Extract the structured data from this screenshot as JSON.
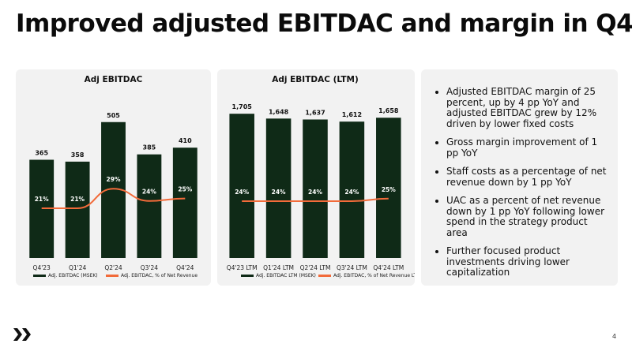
{
  "slide": {
    "title": "Improved adjusted EBITDAC and margin in Q4",
    "page_number": "4",
    "logo_icon": "chevron-logo-icon"
  },
  "colors": {
    "bar": "#0f2a17",
    "line": "#f26b3a",
    "panel_bg": "#f2f2f2"
  },
  "chart_data": [
    {
      "type": "bar",
      "title": "Adj EBITDAC",
      "categories": [
        "Q4'23",
        "Q1'24",
        "Q2'24",
        "Q3'24",
        "Q4'24"
      ],
      "series": [
        {
          "name": "Adj. EBITDAC (MSEK)",
          "type": "bar",
          "values": [
            365,
            358,
            505,
            385,
            410
          ],
          "labels": [
            "365",
            "358",
            "505",
            "385",
            "410"
          ]
        },
        {
          "name": "Adj. EBITDAC, % of Net Revenue",
          "type": "line",
          "values": [
            21,
            21,
            29,
            24,
            25
          ],
          "labels": [
            "21%",
            "21%",
            "29%",
            "24%",
            "25%"
          ]
        }
      ],
      "ylim": [
        0,
        560
      ],
      "grid": false,
      "legend_position": "bottom"
    },
    {
      "type": "bar",
      "title": "Adj EBITDAC (LTM)",
      "categories": [
        "Q4'23 LTM",
        "Q1'24 LTM",
        "Q2'24 LTM",
        "Q3'24 LTM",
        "Q4'24 LTM"
      ],
      "series": [
        {
          "name": "Adj. EBITDAC LTM (MSEK)",
          "type": "bar",
          "values": [
            1705,
            1648,
            1637,
            1612,
            1658
          ],
          "labels": [
            "1,705",
            "1,648",
            "1,637",
            "1,612",
            "1,658"
          ]
        },
        {
          "name": "Adj. EBITDAC, % of Net Revenue LTM",
          "type": "line",
          "values": [
            24,
            24,
            24,
            24,
            25
          ],
          "labels": [
            "24%",
            "24%",
            "24%",
            "24%",
            "25%"
          ]
        }
      ],
      "ylim": [
        0,
        1800
      ],
      "grid": false,
      "legend_position": "bottom"
    }
  ],
  "bullets": [
    "Adjusted EBITDAC margin of 25 percent, up by 4 pp YoY and adjusted EBITDAC grew by 12% driven by lower fixed costs",
    "Gross margin improvement of 1 pp YoY",
    "Staff costs as a percentage of net revenue down by 1 pp YoY",
    "UAC as a percent of net revenue down by 1 pp YoY following lower spend in the strategy product area",
    "Further focused product investments driving lower capitalization"
  ]
}
